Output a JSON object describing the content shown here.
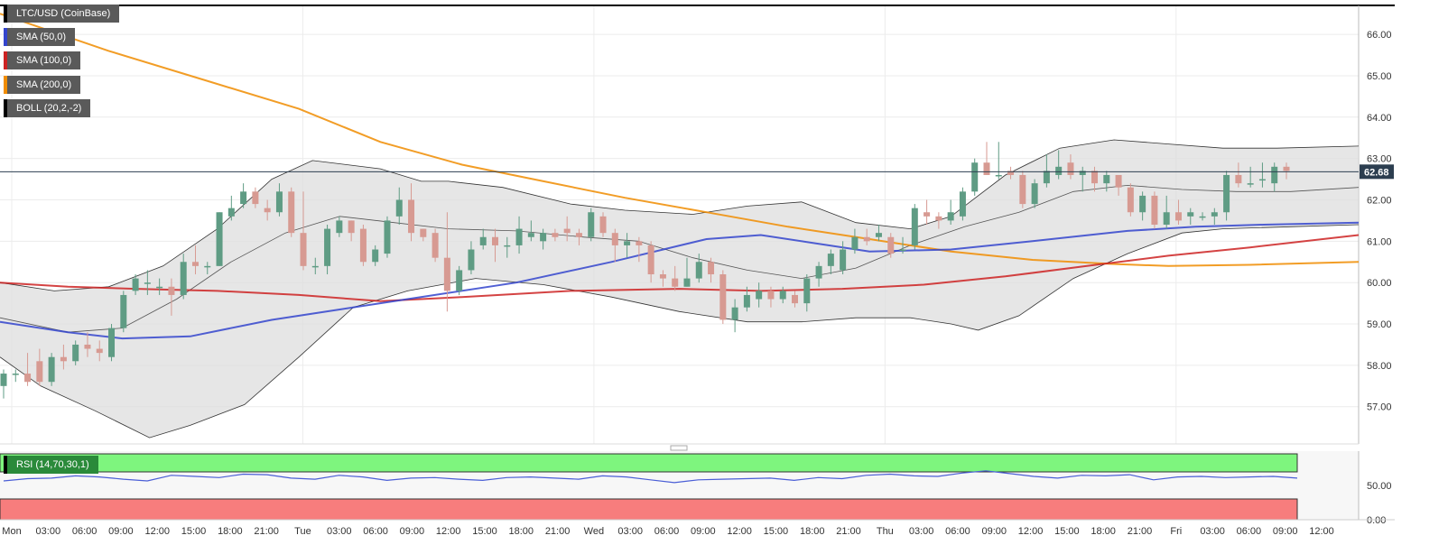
{
  "chart_data": {
    "type": "candlestick",
    "symbol": "LTC/USD (CoinBase)",
    "price_axis": {
      "ylim": [
        56.1,
        66.7
      ],
      "ticks": [
        "66.00",
        "65.00",
        "64.00",
        "63.00",
        "62.00",
        "61.00",
        "60.00",
        "59.00",
        "58.00",
        "57.00"
      ]
    },
    "last_price": {
      "value": 62.68,
      "label": "62.68"
    },
    "time_labels": [
      "Mon",
      "03:00",
      "06:00",
      "09:00",
      "12:00",
      "15:00",
      "18:00",
      "21:00",
      "Tue",
      "03:00",
      "06:00",
      "09:00",
      "12:00",
      "15:00",
      "18:00",
      "21:00",
      "Wed",
      "03:00",
      "06:00",
      "09:00",
      "12:00",
      "15:00",
      "18:00",
      "21:00",
      "Thu",
      "03:00",
      "06:00",
      "09:00",
      "12:00",
      "15:00",
      "18:00",
      "21:00",
      "Fri",
      "03:00",
      "06:00",
      "09:00",
      "12:00"
    ],
    "indicators": [
      {
        "label": "SMA (50,0)",
        "color": "#3344cc"
      },
      {
        "label": "SMA (100,0)",
        "color": "#cc2222"
      },
      {
        "label": "SMA (200,0)",
        "color": "#f08c00"
      },
      {
        "label": "BOLL (20,2,-2)",
        "color": "#000000"
      }
    ],
    "candles": [
      [
        57.5,
        57.8,
        57.2,
        57.9
      ],
      [
        57.8,
        57.8,
        57.6,
        57.9
      ],
      [
        57.8,
        57.6,
        57.5,
        58.3
      ],
      [
        58.1,
        57.6,
        57.5,
        58.4
      ],
      [
        57.6,
        58.2,
        57.5,
        58.3
      ],
      [
        58.2,
        58.1,
        57.9,
        58.5
      ],
      [
        58.1,
        58.5,
        58.0,
        58.6
      ],
      [
        58.5,
        58.4,
        58.2,
        58.8
      ],
      [
        58.4,
        58.3,
        58.1,
        58.6
      ],
      [
        58.2,
        58.9,
        58.1,
        59.0
      ],
      [
        58.9,
        59.7,
        58.8,
        59.8
      ],
      [
        59.8,
        60.1,
        59.7,
        60.2
      ],
      [
        60.0,
        60.0,
        59.7,
        60.3
      ],
      [
        59.9,
        59.9,
        59.7,
        60.1
      ],
      [
        59.9,
        59.7,
        59.2,
        60.1
      ],
      [
        59.7,
        60.5,
        59.6,
        60.7
      ],
      [
        60.5,
        60.4,
        60.2,
        60.9
      ],
      [
        60.4,
        60.4,
        60.2,
        60.5
      ],
      [
        60.4,
        61.7,
        60.4,
        61.7
      ],
      [
        61.6,
        61.8,
        61.5,
        62.1
      ],
      [
        61.9,
        62.2,
        61.8,
        62.4
      ],
      [
        62.2,
        61.9,
        61.8,
        62.3
      ],
      [
        61.8,
        61.7,
        61.5,
        62.0
      ],
      [
        61.7,
        62.2,
        61.6,
        62.4
      ],
      [
        62.2,
        61.2,
        61.1,
        62.3
      ],
      [
        61.2,
        60.4,
        60.3,
        62.2
      ],
      [
        60.4,
        60.4,
        60.2,
        60.6
      ],
      [
        60.4,
        61.3,
        60.2,
        61.4
      ],
      [
        61.2,
        61.5,
        61.1,
        61.6
      ],
      [
        61.5,
        61.2,
        61.0,
        61.5
      ],
      [
        61.3,
        60.5,
        60.4,
        61.4
      ],
      [
        60.5,
        60.8,
        60.4,
        60.9
      ],
      [
        60.7,
        61.5,
        60.6,
        61.6
      ],
      [
        61.6,
        62.0,
        61.4,
        62.3
      ],
      [
        62.0,
        61.2,
        61.0,
        62.4
      ],
      [
        61.3,
        61.1,
        61.0,
        61.3
      ],
      [
        61.2,
        60.6,
        60.5,
        61.3
      ],
      [
        60.6,
        59.8,
        59.3,
        61.7
      ],
      [
        59.8,
        60.3,
        59.7,
        60.4
      ],
      [
        60.3,
        60.8,
        60.2,
        61.0
      ],
      [
        60.9,
        61.1,
        60.8,
        61.3
      ],
      [
        61.1,
        60.9,
        60.5,
        61.3
      ],
      [
        60.9,
        60.9,
        60.6,
        61.1
      ],
      [
        60.9,
        61.3,
        60.7,
        61.6
      ],
      [
        61.1,
        61.2,
        61.0,
        61.5
      ],
      [
        61.0,
        61.2,
        60.8,
        61.3
      ],
      [
        61.2,
        61.1,
        61.0,
        61.3
      ],
      [
        61.3,
        61.2,
        61.0,
        61.6
      ],
      [
        61.2,
        61.1,
        60.9,
        61.3
      ],
      [
        61.1,
        61.7,
        61.0,
        61.8
      ],
      [
        61.6,
        61.2,
        61.1,
        61.7
      ],
      [
        61.2,
        60.9,
        60.5,
        61.3
      ],
      [
        60.9,
        61.0,
        60.6,
        61.2
      ],
      [
        61.0,
        60.9,
        60.5,
        61.1
      ],
      [
        60.9,
        60.2,
        60.0,
        61.0
      ],
      [
        60.2,
        60.1,
        59.9,
        60.3
      ],
      [
        60.1,
        59.9,
        59.8,
        60.4
      ],
      [
        59.9,
        60.1,
        59.9,
        60.6
      ],
      [
        60.1,
        60.5,
        60.0,
        60.7
      ],
      [
        60.5,
        60.2,
        60.0,
        60.6
      ],
      [
        60.2,
        59.1,
        59.0,
        60.3
      ],
      [
        59.1,
        59.4,
        58.8,
        59.6
      ],
      [
        59.4,
        59.7,
        59.3,
        59.9
      ],
      [
        59.6,
        59.8,
        59.4,
        60.0
      ],
      [
        59.8,
        59.6,
        59.4,
        59.9
      ],
      [
        59.6,
        59.8,
        59.5,
        59.9
      ],
      [
        59.7,
        59.5,
        59.4,
        59.8
      ],
      [
        59.5,
        60.1,
        59.3,
        60.2
      ],
      [
        60.1,
        60.4,
        59.9,
        60.5
      ],
      [
        60.4,
        60.7,
        60.2,
        60.8
      ],
      [
        60.3,
        60.8,
        60.2,
        61.0
      ],
      [
        60.8,
        61.1,
        60.7,
        61.3
      ],
      [
        61.1,
        61.0,
        60.9,
        61.3
      ],
      [
        61.1,
        61.2,
        61.0,
        61.4
      ],
      [
        61.1,
        60.7,
        60.6,
        61.2
      ],
      [
        60.8,
        60.8,
        60.7,
        61.1
      ],
      [
        60.9,
        61.8,
        60.8,
        61.9
      ],
      [
        61.7,
        61.6,
        61.4,
        62.0
      ],
      [
        61.6,
        61.5,
        61.3,
        61.7
      ],
      [
        61.5,
        61.7,
        61.4,
        62.0
      ],
      [
        61.6,
        62.2,
        61.5,
        62.3
      ],
      [
        62.2,
        62.9,
        62.1,
        63.0
      ],
      [
        62.9,
        62.6,
        62.6,
        63.4
      ],
      [
        62.6,
        62.6,
        62.5,
        63.4
      ],
      [
        62.7,
        62.6,
        62.5,
        62.8
      ],
      [
        62.6,
        61.9,
        61.8,
        62.7
      ],
      [
        61.9,
        62.4,
        61.8,
        62.5
      ],
      [
        62.4,
        62.7,
        62.3,
        63.1
      ],
      [
        62.6,
        62.8,
        62.5,
        63.2
      ],
      [
        62.9,
        62.6,
        62.5,
        63.1
      ],
      [
        62.6,
        62.7,
        62.2,
        62.8
      ],
      [
        62.7,
        62.4,
        62.2,
        62.8
      ],
      [
        62.4,
        62.6,
        62.2,
        62.7
      ],
      [
        62.6,
        62.3,
        62.1,
        62.6
      ],
      [
        62.3,
        61.7,
        61.6,
        62.4
      ],
      [
        61.7,
        62.1,
        61.5,
        62.2
      ],
      [
        62.1,
        61.4,
        61.3,
        62.2
      ],
      [
        61.4,
        61.7,
        61.3,
        62.1
      ],
      [
        61.7,
        61.5,
        61.4,
        62.0
      ],
      [
        61.6,
        61.7,
        61.4,
        61.8
      ],
      [
        61.6,
        61.6,
        61.5,
        61.7
      ],
      [
        61.6,
        61.7,
        61.4,
        61.8
      ],
      [
        61.7,
        62.6,
        61.5,
        62.7
      ],
      [
        62.6,
        62.4,
        62.3,
        62.9
      ],
      [
        62.4,
        62.4,
        62.3,
        62.8
      ],
      [
        62.5,
        62.5,
        62.3,
        62.9
      ],
      [
        62.4,
        62.8,
        62.2,
        62.9
      ],
      [
        62.8,
        62.7,
        62.5,
        62.9
      ]
    ],
    "sma50": [
      [
        0,
        59.05
      ],
      [
        0.05,
        58.8
      ],
      [
        0.09,
        58.65
      ],
      [
        0.14,
        58.7
      ],
      [
        0.2,
        59.1
      ],
      [
        0.25,
        59.35
      ],
      [
        0.3,
        59.6
      ],
      [
        0.38,
        60.0
      ],
      [
        0.45,
        60.5
      ],
      [
        0.52,
        61.05
      ],
      [
        0.56,
        61.15
      ],
      [
        0.6,
        60.95
      ],
      [
        0.64,
        60.75
      ],
      [
        0.7,
        60.8
      ],
      [
        0.76,
        61.0
      ],
      [
        0.83,
        61.25
      ],
      [
        0.88,
        61.35
      ],
      [
        0.93,
        61.4
      ],
      [
        1.0,
        61.45
      ]
    ],
    "sma100": [
      [
        0,
        60.0
      ],
      [
        0.05,
        59.9
      ],
      [
        0.1,
        59.85
      ],
      [
        0.16,
        59.8
      ],
      [
        0.22,
        59.7
      ],
      [
        0.28,
        59.55
      ],
      [
        0.34,
        59.65
      ],
      [
        0.42,
        59.8
      ],
      [
        0.5,
        59.85
      ],
      [
        0.56,
        59.8
      ],
      [
        0.62,
        59.85
      ],
      [
        0.68,
        59.95
      ],
      [
        0.74,
        60.15
      ],
      [
        0.8,
        60.4
      ],
      [
        0.86,
        60.65
      ],
      [
        0.92,
        60.85
      ],
      [
        1.0,
        61.15
      ]
    ],
    "sma200": [
      [
        0,
        66.5
      ],
      [
        0.08,
        65.6
      ],
      [
        0.15,
        64.9
      ],
      [
        0.22,
        64.2
      ],
      [
        0.28,
        63.4
      ],
      [
        0.34,
        62.85
      ],
      [
        0.4,
        62.45
      ],
      [
        0.46,
        62.05
      ],
      [
        0.52,
        61.7
      ],
      [
        0.58,
        61.35
      ],
      [
        0.64,
        61.05
      ],
      [
        0.7,
        60.75
      ],
      [
        0.76,
        60.55
      ],
      [
        0.82,
        60.45
      ],
      [
        0.86,
        60.4
      ],
      [
        0.92,
        60.43
      ],
      [
        1.0,
        60.5
      ]
    ],
    "boll_upper": [
      [
        0,
        60.0
      ],
      [
        0.04,
        59.8
      ],
      [
        0.08,
        59.9
      ],
      [
        0.12,
        60.4
      ],
      [
        0.16,
        61.3
      ],
      [
        0.2,
        62.5
      ],
      [
        0.23,
        62.95
      ],
      [
        0.28,
        62.75
      ],
      [
        0.31,
        62.45
      ],
      [
        0.33,
        62.45
      ],
      [
        0.37,
        62.3
      ],
      [
        0.42,
        61.9
      ],
      [
        0.46,
        61.75
      ],
      [
        0.51,
        61.65
      ],
      [
        0.55,
        61.85
      ],
      [
        0.59,
        61.95
      ],
      [
        0.63,
        61.45
      ],
      [
        0.67,
        61.3
      ],
      [
        0.7,
        61.6
      ],
      [
        0.74,
        62.6
      ],
      [
        0.78,
        63.25
      ],
      [
        0.82,
        63.45
      ],
      [
        0.86,
        63.35
      ],
      [
        0.9,
        63.25
      ],
      [
        0.94,
        63.25
      ],
      [
        1.0,
        63.3
      ]
    ],
    "boll_middle": [
      [
        0,
        59.15
      ],
      [
        0.05,
        58.8
      ],
      [
        0.09,
        58.9
      ],
      [
        0.13,
        59.6
      ],
      [
        0.17,
        60.5
      ],
      [
        0.21,
        61.2
      ],
      [
        0.25,
        61.6
      ],
      [
        0.29,
        61.45
      ],
      [
        0.33,
        61.3
      ],
      [
        0.38,
        61.25
      ],
      [
        0.43,
        61.1
      ],
      [
        0.47,
        61.0
      ],
      [
        0.51,
        60.6
      ],
      [
        0.55,
        60.3
      ],
      [
        0.59,
        60.1
      ],
      [
        0.63,
        60.35
      ],
      [
        0.67,
        60.9
      ],
      [
        0.71,
        61.35
      ],
      [
        0.75,
        61.7
      ],
      [
        0.79,
        62.2
      ],
      [
        0.83,
        62.35
      ],
      [
        0.87,
        62.25
      ],
      [
        0.91,
        62.2
      ],
      [
        0.95,
        62.2
      ],
      [
        1.0,
        62.3
      ]
    ],
    "boll_lower": [
      [
        0,
        58.2
      ],
      [
        0.03,
        57.5
      ],
      [
        0.07,
        56.9
      ],
      [
        0.11,
        56.25
      ],
      [
        0.14,
        56.55
      ],
      [
        0.18,
        57.05
      ],
      [
        0.22,
        58.2
      ],
      [
        0.26,
        59.4
      ],
      [
        0.3,
        59.8
      ],
      [
        0.35,
        60.1
      ],
      [
        0.4,
        59.95
      ],
      [
        0.45,
        59.65
      ],
      [
        0.5,
        59.3
      ],
      [
        0.55,
        59.05
      ],
      [
        0.59,
        59.05
      ],
      [
        0.63,
        59.15
      ],
      [
        0.67,
        59.15
      ],
      [
        0.7,
        59.0
      ],
      [
        0.72,
        58.85
      ],
      [
        0.75,
        59.2
      ],
      [
        0.79,
        60.1
      ],
      [
        0.83,
        60.7
      ],
      [
        0.87,
        61.2
      ],
      [
        0.9,
        61.3
      ],
      [
        0.95,
        61.35
      ],
      [
        1.0,
        61.4
      ]
    ],
    "rsi": {
      "label": "RSI (14,70,30,1)",
      "ylim": [
        0,
        100
      ],
      "ticks": [
        "50.00",
        "0.00"
      ],
      "values": [
        44,
        48,
        49,
        53,
        51,
        47,
        44,
        54,
        52,
        50,
        56,
        55,
        49,
        47,
        54,
        51,
        45,
        49,
        50,
        47,
        45,
        50,
        51,
        49,
        47,
        53,
        51,
        46,
        41,
        46,
        47,
        48,
        49,
        45,
        50,
        48,
        54,
        56,
        53,
        52,
        58,
        62,
        57,
        52,
        49,
        54,
        53,
        55,
        46,
        51,
        52,
        50,
        51,
        52,
        49
      ]
    }
  },
  "colors": {
    "bull": "#5f9c84",
    "bull_dark": "#2a7a5c",
    "bear": "#d79a92",
    "bear_dark": "#c06a60",
    "band_fill": "#dedede",
    "rsi_upper": "#7ef57e",
    "rsi_lower": "#f77d7d",
    "rsi_line": "#4a5ed6",
    "price_tag": "#2c3e50"
  }
}
